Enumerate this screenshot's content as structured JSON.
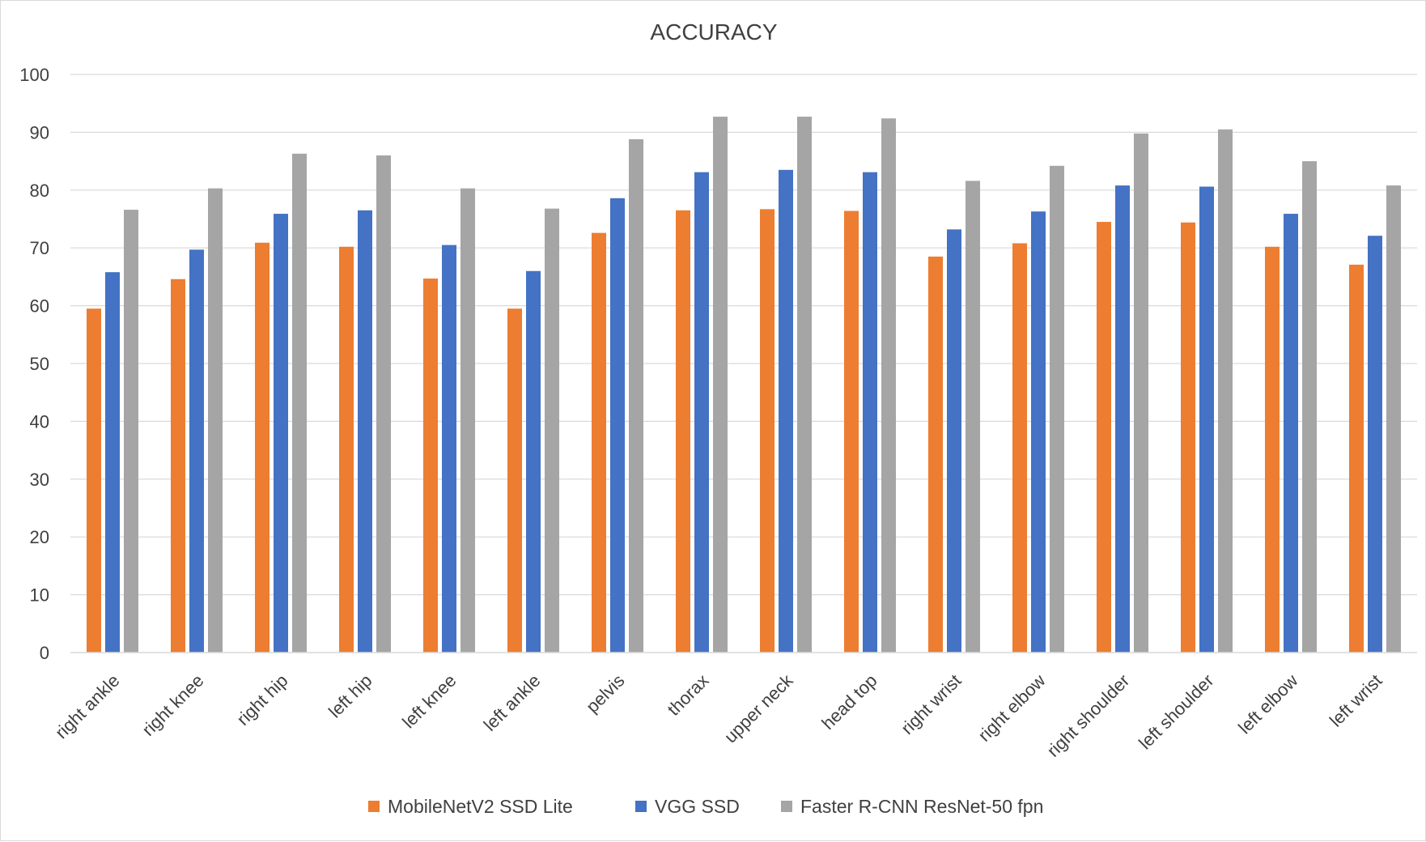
{
  "chart_data": {
    "type": "bar",
    "title": "ACCURACY",
    "xlabel": "",
    "ylabel": "",
    "ylim": [
      0,
      100
    ],
    "yticks": [
      0,
      10,
      20,
      30,
      40,
      50,
      60,
      70,
      80,
      90,
      100
    ],
    "grid": true,
    "legend_position": "bottom",
    "categories": [
      "right ankle",
      "right knee",
      "right hip",
      "left hip",
      "left knee",
      "left ankle",
      "pelvis",
      "thorax",
      "upper neck",
      "head top",
      "right wrist",
      "right elbow",
      "right shoulder",
      "left shoulder",
      "left elbow",
      "left wrist"
    ],
    "series": [
      {
        "name": "MobileNetV2 SSD Lite",
        "color": "#ed7d31",
        "values": [
          59.5,
          64.6,
          70.9,
          70.2,
          64.7,
          59.5,
          72.6,
          76.5,
          76.7,
          76.4,
          68.5,
          70.8,
          74.5,
          74.4,
          70.2,
          67.1
        ]
      },
      {
        "name": "VGG SSD",
        "color": "#4472c4",
        "values": [
          65.8,
          69.7,
          75.9,
          76.5,
          70.5,
          66.0,
          78.6,
          83.1,
          83.5,
          83.1,
          73.2,
          76.3,
          80.8,
          80.6,
          75.9,
          72.1
        ]
      },
      {
        "name": "Faster R-CNN ResNet-50 fpn",
        "color": "#a5a5a5",
        "values": [
          76.6,
          80.3,
          86.3,
          86.0,
          80.3,
          76.8,
          88.8,
          92.7,
          92.7,
          92.4,
          81.6,
          84.2,
          89.8,
          90.5,
          85.0,
          80.8
        ]
      }
    ]
  }
}
